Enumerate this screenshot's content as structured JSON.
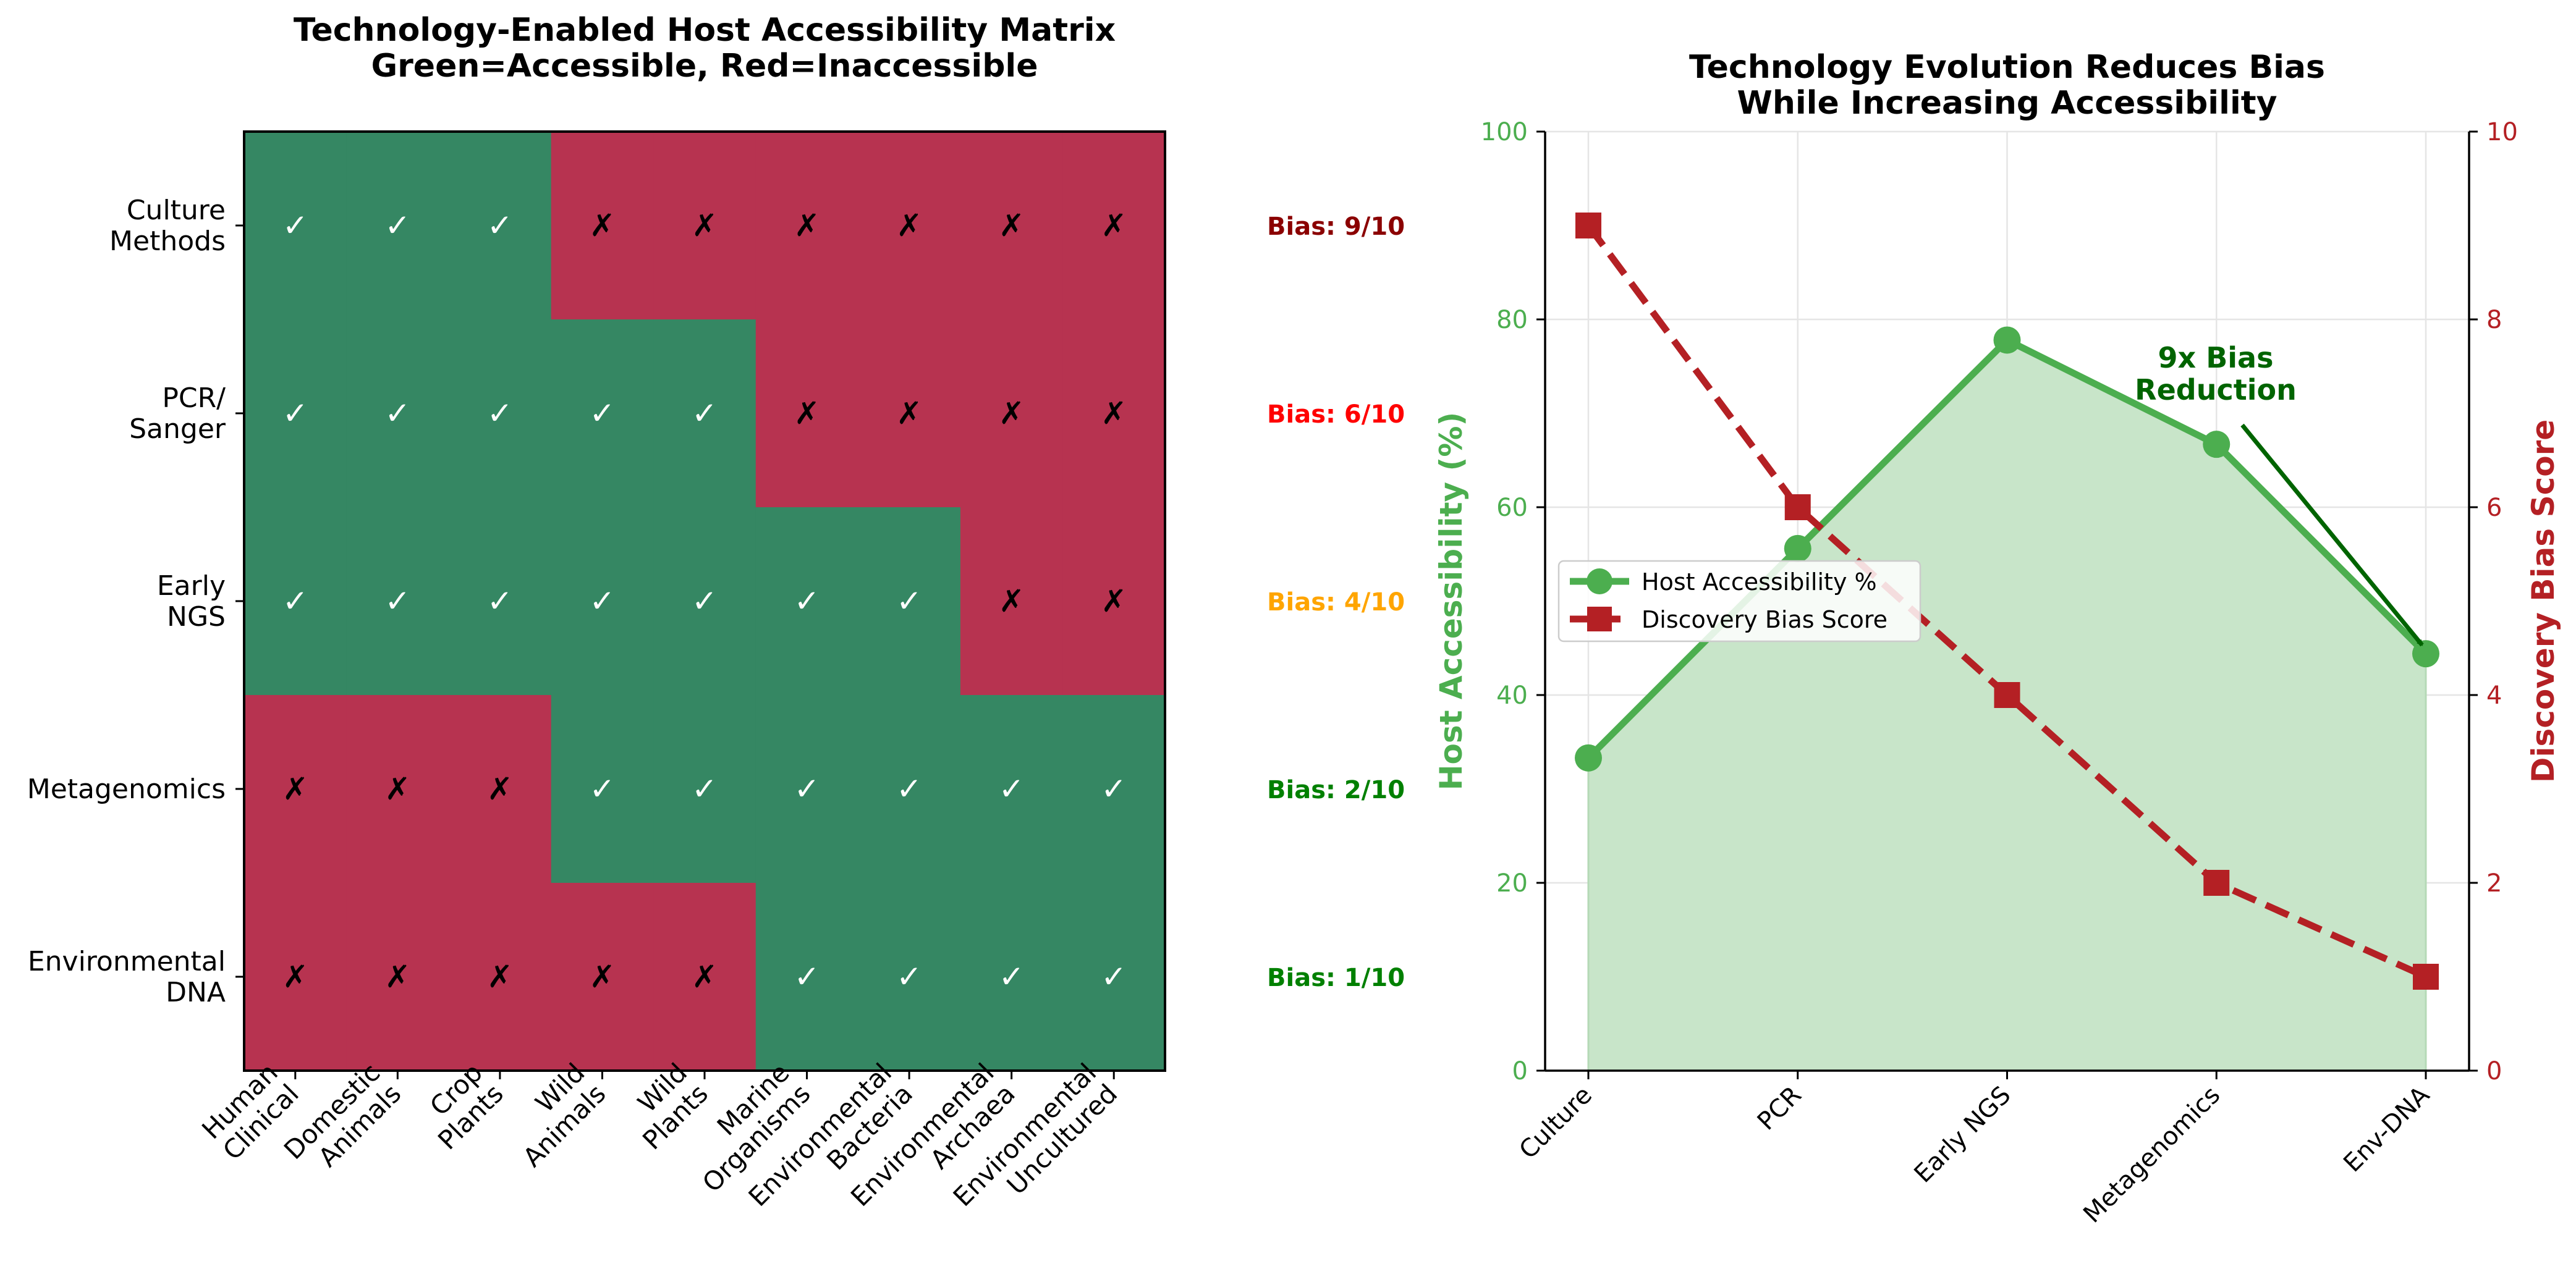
{
  "colors": {
    "accessible": "#358763",
    "inaccessible": "#b73350",
    "line_green": "#4cae4f",
    "fill_green": "#c8e5c9",
    "line_red": "#b42024",
    "arrow_green": "#006400",
    "bias_colors": [
      "#8b0000",
      "#ff0000",
      "#ffa500",
      "#008000",
      "#008000"
    ]
  },
  "chart_data": [
    {
      "type": "heatmap",
      "title": "Technology-Enabled Host Accessibility Matrix\nGreen=Accessible, Red=Inaccessible",
      "rows": [
        "Culture\nMethods",
        "PCR/\nSanger",
        "Early\nNGS",
        "Metagenomics",
        "Environmental\nDNA"
      ],
      "columns": [
        "Human\nClinical",
        "Domestic\nAnimals",
        "Crop\nPlants",
        "Wild\nAnimals",
        "Wild\nPlants",
        "Marine\nOrganisms",
        "Environmental\nBacteria",
        "Environmental\nArchaea",
        "Environmental\nUncultured"
      ],
      "values": [
        [
          1,
          1,
          1,
          0,
          0,
          0,
          0,
          0,
          0
        ],
        [
          1,
          1,
          1,
          1,
          1,
          0,
          0,
          0,
          0
        ],
        [
          1,
          1,
          1,
          1,
          1,
          1,
          1,
          0,
          0
        ],
        [
          0,
          0,
          0,
          1,
          1,
          1,
          1,
          1,
          1
        ],
        [
          0,
          0,
          0,
          0,
          0,
          1,
          1,
          1,
          1
        ]
      ],
      "symbols": {
        "accessible": "✓",
        "inaccessible": "✗"
      },
      "row_annotations": [
        "Bias: 9/10",
        "Bias: 6/10",
        "Bias: 4/10",
        "Bias: 2/10",
        "Bias: 1/10"
      ]
    },
    {
      "type": "line",
      "title": "Technology Evolution Reduces Bias\nWhile Increasing Accessibility",
      "categories": [
        "Culture",
        "PCR",
        "Early NGS",
        "Metagenomics",
        "Env-DNA"
      ],
      "series": [
        {
          "name": "Host Accessibility %",
          "axis": "left",
          "values": [
            33.3,
            55.6,
            77.8,
            66.7,
            44.4
          ]
        },
        {
          "name": "Discovery Bias Score",
          "axis": "right",
          "values": [
            9,
            6,
            4,
            2,
            1
          ]
        }
      ],
      "ylabel": "Host Accessibility (%)",
      "ylabel_right": "Discovery Bias Score",
      "ylim": [
        0,
        100
      ],
      "ylim_right": [
        0,
        10
      ],
      "yticks": [
        0,
        20,
        40,
        60,
        80,
        100
      ],
      "yticks_right": [
        0,
        2,
        4,
        6,
        8,
        10
      ],
      "grid": true,
      "legend": "center-left",
      "annotation": {
        "text": "9x Bias\nReduction",
        "points_to": "Env-DNA"
      }
    }
  ]
}
